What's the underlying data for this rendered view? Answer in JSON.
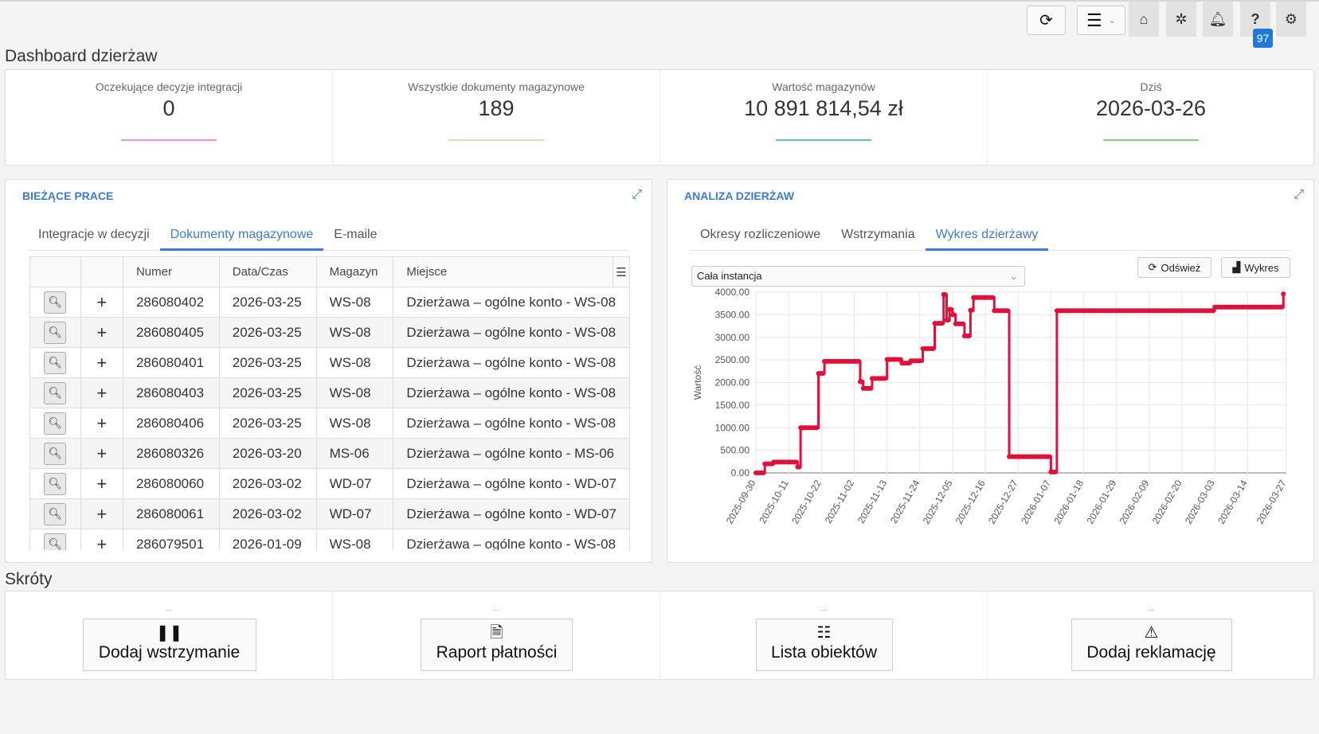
{
  "topbar": {
    "badge_count": "97",
    "icons": [
      "refresh-icon",
      "menu-icon",
      "home-icon",
      "magic-wand-icon",
      "bell-icon",
      "help-icon",
      "gear-icon"
    ]
  },
  "page_title": "Dashboard dzierżaw",
  "stats": [
    {
      "label": "Oczekujące decyzje integracji",
      "value": "0",
      "color": "#f78fc8"
    },
    {
      "label": "Wszystkie dokumenty magazynowe",
      "value": "189",
      "color": "#f0d5c5"
    },
    {
      "label": "Wartość magazynów",
      "value": "10 891 814,54 zł",
      "color": "#5cc3b5"
    },
    {
      "label": "Dziś",
      "value": "2026-03-26",
      "color": "#80d880"
    }
  ],
  "left_panel": {
    "title": "BIEŻĄCE PRACE",
    "tabs": [
      "Integracje w decyzji",
      "Dokumenty magazynowe",
      "E-maile"
    ],
    "active_tab": 1,
    "columns": [
      "",
      "",
      "Numer",
      "Data/Czas",
      "Magazyn",
      "Miejsce"
    ],
    "rows": [
      [
        "286080402",
        "2026-03-25",
        "WS-08",
        "Dzierżawa – ogólne konto - WS-08"
      ],
      [
        "286080405",
        "2026-03-25",
        "WS-08",
        "Dzierżawa – ogólne konto - WS-08"
      ],
      [
        "286080401",
        "2026-03-25",
        "WS-08",
        "Dzierżawa – ogólne konto - WS-08"
      ],
      [
        "286080403",
        "2026-03-25",
        "WS-08",
        "Dzierżawa – ogólne konto - WS-08"
      ],
      [
        "286080406",
        "2026-03-25",
        "WS-08",
        "Dzierżawa – ogólne konto - WS-08"
      ],
      [
        "286080326",
        "2026-03-20",
        "MS-06",
        "Dzierżawa – ogólne konto - MS-06"
      ],
      [
        "286080060",
        "2026-03-02",
        "WD-07",
        "Dzierżawa – ogólne konto - WD-07"
      ],
      [
        "286080061",
        "2026-03-02",
        "WD-07",
        "Dzierżawa – ogólne konto - WD-07"
      ],
      [
        "286079501",
        "2026-01-09",
        "WS-08",
        "Dzierżawa – ogólne konto - WS-08"
      ]
    ]
  },
  "right_panel": {
    "title": "ANALIZA DZIERŻAW",
    "tabs": [
      "Okresy rozliczeniowe",
      "Wstrzymania",
      "Wykres dzierżawy"
    ],
    "active_tab": 2,
    "select_value": "Cała instancja",
    "refresh_label": "Odśwież",
    "chart_label": "Wykres"
  },
  "chart_data": {
    "type": "line",
    "step": true,
    "ylabel": "Wartość",
    "xlabel": "",
    "ylim": [
      0,
      4000
    ],
    "xlim": [
      "2025-09-30",
      "2026-03-27"
    ],
    "grid": true,
    "color": "#e0103a",
    "yticks": [
      "0.00",
      "500.00",
      "1000.00",
      "1500.00",
      "2000.00",
      "2500.00",
      "3000.00",
      "3500.00",
      "4000.00"
    ],
    "xticks": [
      "2025-09-30",
      "2025-10-11",
      "2025-10-22",
      "2025-11-02",
      "2025-11-13",
      "2025-11-24",
      "2025-12-05",
      "2025-12-16",
      "2025-12-27",
      "2026-01-07",
      "2026-01-18",
      "2026-01-29",
      "2026-02-09",
      "2026-02-20",
      "2026-03-03",
      "2026-03-14",
      "2026-03-27"
    ],
    "points": [
      [
        "2025-09-30",
        0
      ],
      [
        "2025-10-03",
        200
      ],
      [
        "2025-10-06",
        240
      ],
      [
        "2025-10-14",
        130
      ],
      [
        "2025-10-15",
        1000
      ],
      [
        "2025-10-21",
        2200
      ],
      [
        "2025-10-23",
        2470
      ],
      [
        "2025-11-04",
        2020
      ],
      [
        "2025-11-05",
        1870
      ],
      [
        "2025-11-08",
        2090
      ],
      [
        "2025-11-13",
        2510
      ],
      [
        "2025-11-18",
        2430
      ],
      [
        "2025-11-21",
        2480
      ],
      [
        "2025-11-25",
        2750
      ],
      [
        "2025-11-29",
        3310
      ],
      [
        "2025-12-02",
        3950
      ],
      [
        "2025-12-03",
        3380
      ],
      [
        "2025-12-04",
        3620
      ],
      [
        "2025-12-05",
        3500
      ],
      [
        "2025-12-06",
        3300
      ],
      [
        "2025-12-09",
        3030
      ],
      [
        "2025-12-11",
        3600
      ],
      [
        "2025-12-12",
        3880
      ],
      [
        "2025-12-19",
        3590
      ],
      [
        "2025-12-24",
        360
      ],
      [
        "2026-01-07",
        20
      ],
      [
        "2026-01-09",
        3590
      ],
      [
        "2026-03-03",
        3670
      ],
      [
        "2026-03-26",
        3960
      ]
    ]
  },
  "shortcuts": {
    "title": "Skróty",
    "items": [
      {
        "dots": "...",
        "label": "Dodaj wstrzymanie",
        "icon": "pause-icon"
      },
      {
        "dots": "...",
        "label": "Raport płatności",
        "icon": "document-icon"
      },
      {
        "dots": "...",
        "label": "Lista obiektów",
        "icon": "list-icon"
      },
      {
        "dots": "...",
        "label": "Dodaj reklamację",
        "icon": "warning-icon"
      }
    ]
  }
}
